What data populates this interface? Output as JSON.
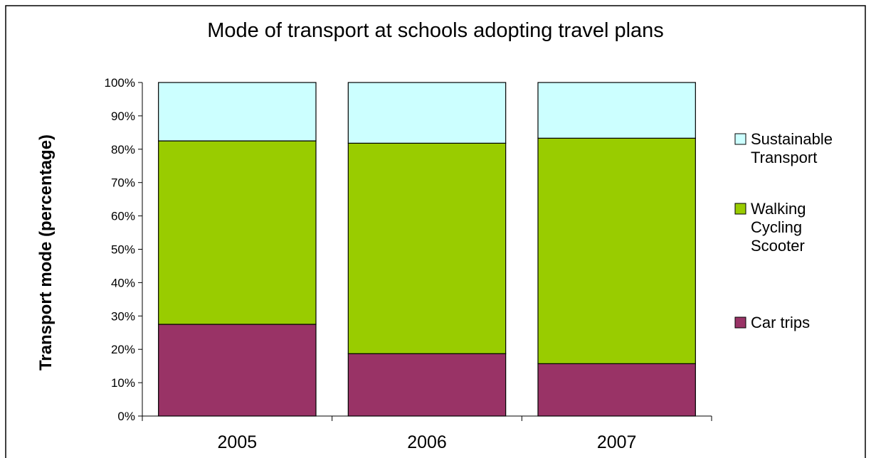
{
  "chart_data": {
    "type": "bar",
    "stacked": true,
    "normalized": true,
    "title": "Mode of transport at schools adopting travel plans",
    "xlabel": "",
    "ylabel": "Transport mode (percentage)",
    "ylim": [
      0,
      100
    ],
    "yticks": [
      "0%",
      "10%",
      "20%",
      "30%",
      "40%",
      "50%",
      "60%",
      "70%",
      "80%",
      "90%",
      "100%"
    ],
    "categories": [
      "2005",
      "2006",
      "2007"
    ],
    "series": [
      {
        "name": "Car trips",
        "legend_lines": [
          "Car trips"
        ],
        "color": "#993366",
        "values": [
          27.5,
          18.7,
          15.7
        ]
      },
      {
        "name": "Walking Cycling Scooter",
        "legend_lines": [
          "Walking",
          "Cycling",
          "Scooter"
        ],
        "color": "#99cc00",
        "values": [
          55.0,
          63.1,
          67.6
        ]
      },
      {
        "name": "Sustainable Transport",
        "legend_lines": [
          "Sustainable",
          "Transport"
        ],
        "color": "#ccffff",
        "values": [
          17.5,
          18.2,
          16.7
        ]
      }
    ],
    "legend_position": "right",
    "grid": false
  }
}
